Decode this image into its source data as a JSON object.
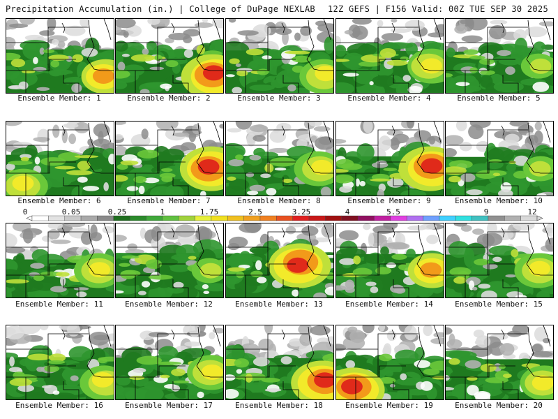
{
  "header": {
    "left": "Precipitation Accumulation (in.) | College of DuPage NEXLAB",
    "right": "12Z GEFS | F156 Valid: 00Z TUE SEP 30 2025"
  },
  "member_label_prefix": "Ensemble Member: ",
  "members": [
    {
      "id": 1,
      "label": "Ensemble Member: 1",
      "max_center": "southeast",
      "intensity": "moderate-heavy"
    },
    {
      "id": 2,
      "label": "Ensemble Member: 2",
      "max_center": "southeast",
      "intensity": "heavy"
    },
    {
      "id": 3,
      "label": "Ensemble Member: 3",
      "max_center": "southeast",
      "intensity": "moderate"
    },
    {
      "id": 4,
      "label": "Ensemble Member: 4",
      "max_center": "east",
      "intensity": "moderate"
    },
    {
      "id": 5,
      "label": "Ensemble Member: 5",
      "max_center": "east",
      "intensity": "light-moderate"
    },
    {
      "id": 6,
      "label": "Ensemble Member: 6",
      "max_center": "southwest",
      "intensity": "moderate"
    },
    {
      "id": 7,
      "label": "Ensemble Member: 7",
      "max_center": "east",
      "intensity": "heavy"
    },
    {
      "id": 8,
      "label": "Ensemble Member: 8",
      "max_center": "east",
      "intensity": "moderate"
    },
    {
      "id": 9,
      "label": "Ensemble Member: 9",
      "max_center": "east",
      "intensity": "heavy"
    },
    {
      "id": 10,
      "label": "Ensemble Member: 10",
      "max_center": "east",
      "intensity": "light-moderate"
    },
    {
      "id": 11,
      "label": "Ensemble Member: 11",
      "max_center": "east",
      "intensity": "moderate"
    },
    {
      "id": 12,
      "label": "Ensemble Member: 12",
      "max_center": "east",
      "intensity": "light-moderate"
    },
    {
      "id": 13,
      "label": "Ensemble Member: 13",
      "max_center": "center-east",
      "intensity": "heavy"
    },
    {
      "id": 14,
      "label": "Ensemble Member: 14",
      "max_center": "east",
      "intensity": "moderate-heavy"
    },
    {
      "id": 15,
      "label": "Ensemble Member: 15",
      "max_center": "east",
      "intensity": "moderate"
    },
    {
      "id": 16,
      "label": "Ensemble Member: 16",
      "max_center": "southeast",
      "intensity": "moderate"
    },
    {
      "id": 17,
      "label": "Ensemble Member: 17",
      "max_center": "east",
      "intensity": "moderate"
    },
    {
      "id": 18,
      "label": "Ensemble Member: 18",
      "max_center": "southeast",
      "intensity": "heavy"
    },
    {
      "id": 19,
      "label": "Ensemble Member: 19",
      "max_center": "southwest",
      "intensity": "heavy"
    },
    {
      "id": 20,
      "label": "Ensemble Member: 20",
      "max_center": "southeast",
      "intensity": "moderate"
    }
  ],
  "colorbar": {
    "labels": [
      "0",
      "0.05",
      "0.25",
      "1",
      "1.75",
      "2.5",
      "3.25",
      "4",
      "5.5",
      "7",
      "9",
      "12"
    ],
    "colors": [
      "#ffffff",
      "#e2e2e2",
      "#c9c9c9",
      "#a9a9a9",
      "#8a8a8a",
      "#1e6e1e",
      "#2b8a2b",
      "#3fa83a",
      "#60c040",
      "#a0d23c",
      "#e6f03c",
      "#f0e020",
      "#f0c020",
      "#f0a020",
      "#f08020",
      "#e85020",
      "#e02020",
      "#c81818",
      "#a01010",
      "#801020",
      "#901060",
      "#c020a0",
      "#e040e0",
      "#b070f0",
      "#70a0ff",
      "#40d0ff",
      "#30e0e0",
      "#40c0c0",
      "#909090",
      "#b0b0b0",
      "#d8d8d8"
    ]
  },
  "map_colors": {
    "light_gray": "#dcdcdc",
    "mid_gray": "#b0b0b0",
    "dark_gray": "#8c8c8c",
    "dark_green": "#1f7a1f",
    "green": "#2f962f",
    "bright_green": "#6ac83a",
    "yellow_green": "#bfe03a",
    "yellow": "#f2ea2a",
    "orange": "#f29a1a",
    "red": "#e02a1a",
    "magenta": "#c020a0",
    "border": "#000000"
  }
}
